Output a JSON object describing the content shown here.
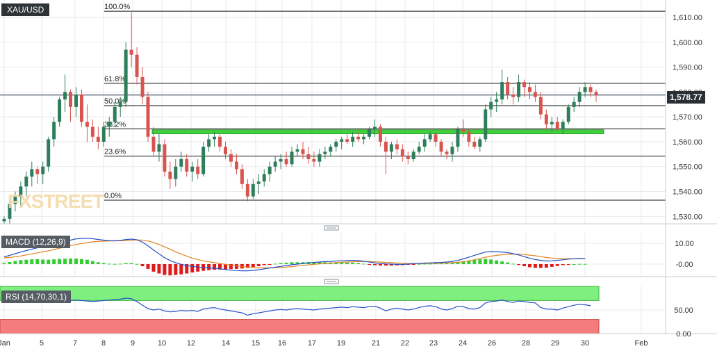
{
  "symbol": "XAU/USD",
  "current_price_label": "1,578.77",
  "watermark": "FXSTREET",
  "colors": {
    "up": "#2e7d5b",
    "down": "#d9534f",
    "grid": "#e8eaee",
    "fib_line": "#111111",
    "support_zone": "#42d13e",
    "macd_line": "#2450c8",
    "signal_line": "#e4831f",
    "hist_pos": "#33cc33",
    "hist_neg": "#e01919",
    "rsi_line": "#2450c8",
    "rsi_overbought": "#7fef7f",
    "rsi_oversold": "#f47c7c"
  },
  "chart_data": [
    {
      "type": "candlestick",
      "title": "XAU/USD",
      "ylim": [
        1527,
        1617
      ],
      "yticks": [
        1530,
        1540,
        1550,
        1560,
        1570,
        1580,
        1590,
        1600,
        1610
      ],
      "ytick_labels": [
        "1,530.00",
        "1,540.00",
        "1,550.00",
        "1,560.00",
        "1,570.00",
        "1,580.00",
        "1,590.00",
        "1,600.00",
        "1,610.00"
      ],
      "x_ticks": [
        "Jan",
        "5",
        "7",
        "8",
        "9",
        "10",
        "12",
        "14",
        "15",
        "16",
        "17",
        "19",
        "21",
        "22",
        "23",
        "24",
        "26",
        "28",
        "29",
        "30",
        "Feb"
      ],
      "last_price": 1578.77,
      "fibonacci": [
        {
          "label": "100.0%",
          "value": 1612.5
        },
        {
          "label": "61.8%",
          "value": 1583.5
        },
        {
          "label": "50.0%",
          "value": 1574.5
        },
        {
          "label": "38.2%",
          "value": 1565.2
        },
        {
          "label": "23.6%",
          "value": 1554.2
        },
        {
          "label": "0.0%",
          "value": 1536.5
        }
      ],
      "support_zone": [
        1563.2,
        1564.8
      ],
      "ohlc": [
        [
          1528,
          1530,
          1527,
          1529
        ],
        [
          1529,
          1536,
          1527,
          1535
        ],
        [
          1535,
          1540,
          1532,
          1538
        ],
        [
          1538,
          1544,
          1534,
          1542
        ],
        [
          1542,
          1548,
          1538,
          1546
        ],
        [
          1546,
          1552,
          1542,
          1549
        ],
        [
          1549,
          1550,
          1543,
          1547
        ],
        [
          1547,
          1552,
          1543,
          1550
        ],
        [
          1550,
          1562,
          1548,
          1561
        ],
        [
          1561,
          1570,
          1558,
          1568
        ],
        [
          1568,
          1578,
          1566,
          1577
        ],
        [
          1577,
          1587,
          1572,
          1580
        ],
        [
          1580,
          1581,
          1568,
          1574
        ],
        [
          1574,
          1582,
          1570,
          1579
        ],
        [
          1579,
          1581,
          1566,
          1568
        ],
        [
          1568,
          1575,
          1560,
          1566
        ],
        [
          1566,
          1569,
          1560,
          1562
        ],
        [
          1562,
          1566,
          1557,
          1560
        ],
        [
          1560,
          1568,
          1558,
          1566
        ],
        [
          1566,
          1570,
          1562,
          1568
        ],
        [
          1568,
          1576,
          1566,
          1574
        ],
        [
          1574,
          1578,
          1570,
          1576
        ],
        [
          1576,
          1600,
          1574,
          1597
        ],
        [
          1597,
          1612,
          1590,
          1595
        ],
        [
          1595,
          1598,
          1583,
          1586
        ],
        [
          1586,
          1590,
          1575,
          1578
        ],
        [
          1578,
          1580,
          1560,
          1562
        ],
        [
          1562,
          1566,
          1554,
          1556
        ],
        [
          1556,
          1563,
          1552,
          1559
        ],
        [
          1559,
          1561,
          1546,
          1548
        ],
        [
          1548,
          1552,
          1541,
          1545
        ],
        [
          1545,
          1553,
          1542,
          1550
        ],
        [
          1550,
          1556,
          1548,
          1553
        ],
        [
          1553,
          1555,
          1546,
          1548
        ],
        [
          1548,
          1552,
          1544,
          1550
        ],
        [
          1550,
          1553,
          1545,
          1547
        ],
        [
          1547,
          1560,
          1546,
          1558
        ],
        [
          1558,
          1563,
          1556,
          1561
        ],
        [
          1561,
          1564,
          1558,
          1562
        ],
        [
          1562,
          1563,
          1556,
          1558
        ],
        [
          1558,
          1560,
          1553,
          1555
        ],
        [
          1555,
          1557,
          1550,
          1552
        ],
        [
          1552,
          1555,
          1547,
          1549
        ],
        [
          1549,
          1551,
          1541,
          1543
        ],
        [
          1543,
          1545,
          1536,
          1538
        ],
        [
          1538,
          1545,
          1537,
          1543
        ],
        [
          1543,
          1547,
          1539,
          1544
        ],
        [
          1544,
          1549,
          1542,
          1547
        ],
        [
          1547,
          1552,
          1544,
          1550
        ],
        [
          1550,
          1554,
          1548,
          1552
        ],
        [
          1552,
          1555,
          1549,
          1553
        ],
        [
          1553,
          1556,
          1550,
          1551
        ],
        [
          1551,
          1558,
          1550,
          1556
        ],
        [
          1556,
          1559,
          1554,
          1557
        ],
        [
          1557,
          1560,
          1553,
          1555
        ],
        [
          1555,
          1558,
          1551,
          1553
        ],
        [
          1553,
          1556,
          1550,
          1552
        ],
        [
          1552,
          1557,
          1550,
          1555
        ],
        [
          1555,
          1558,
          1553,
          1556
        ],
        [
          1556,
          1559,
          1554,
          1558
        ],
        [
          1558,
          1561,
          1556,
          1560
        ],
        [
          1560,
          1562,
          1557,
          1561
        ],
        [
          1561,
          1563,
          1559,
          1560
        ],
        [
          1560,
          1564,
          1558,
          1562
        ],
        [
          1562,
          1564,
          1560,
          1561
        ],
        [
          1561,
          1563,
          1559,
          1562
        ],
        [
          1562,
          1566,
          1561,
          1565
        ],
        [
          1565,
          1569,
          1562,
          1566
        ],
        [
          1566,
          1567,
          1558,
          1560
        ],
        [
          1560,
          1562,
          1547,
          1556
        ],
        [
          1556,
          1560,
          1553,
          1559
        ],
        [
          1559,
          1561,
          1555,
          1557
        ],
        [
          1557,
          1559,
          1552,
          1554
        ],
        [
          1554,
          1556,
          1551,
          1553
        ],
        [
          1553,
          1557,
          1552,
          1556
        ],
        [
          1556,
          1560,
          1555,
          1558
        ],
        [
          1558,
          1563,
          1556,
          1561
        ],
        [
          1561,
          1564,
          1560,
          1563
        ],
        [
          1563,
          1564,
          1558,
          1560
        ],
        [
          1560,
          1561,
          1554,
          1556
        ],
        [
          1556,
          1557,
          1553,
          1555
        ],
        [
          1555,
          1560,
          1552,
          1558
        ],
        [
          1558,
          1566,
          1556,
          1565
        ],
        [
          1565,
          1569,
          1562,
          1564
        ],
        [
          1564,
          1565,
          1558,
          1560
        ],
        [
          1560,
          1562,
          1557,
          1558
        ],
        [
          1558,
          1562,
          1556,
          1561
        ],
        [
          1561,
          1575,
          1560,
          1573
        ],
        [
          1573,
          1578,
          1570,
          1576
        ],
        [
          1576,
          1580,
          1572,
          1577
        ],
        [
          1577,
          1589,
          1575,
          1584
        ],
        [
          1584,
          1586,
          1577,
          1579
        ],
        [
          1579,
          1582,
          1575,
          1578
        ],
        [
          1578,
          1587,
          1576,
          1584
        ],
        [
          1584,
          1585,
          1578,
          1582
        ],
        [
          1582,
          1584,
          1577,
          1580
        ],
        [
          1580,
          1583,
          1576,
          1578
        ],
        [
          1578,
          1580,
          1569,
          1571
        ],
        [
          1571,
          1573,
          1565,
          1567
        ],
        [
          1567,
          1570,
          1564,
          1568
        ],
        [
          1568,
          1570,
          1564,
          1565
        ],
        [
          1565,
          1569,
          1563,
          1568
        ],
        [
          1568,
          1575,
          1567,
          1574
        ],
        [
          1574,
          1578,
          1572,
          1576
        ],
        [
          1576,
          1582,
          1574,
          1580
        ],
        [
          1580,
          1584,
          1578,
          1582
        ],
        [
          1582,
          1583,
          1578,
          1580
        ],
        [
          1580,
          1581,
          1576,
          1578.77
        ]
      ]
    },
    {
      "type": "line",
      "title": "MACD (12,26,9)",
      "ylim": [
        -6,
        15
      ],
      "yticks": [
        10,
        0
      ],
      "ytick_labels": [
        "10.00",
        "-0.00"
      ],
      "series": [
        {
          "name": "MACD",
          "values": [
            3.5,
            4.2,
            5.0,
            5.8,
            6.5,
            7.2,
            7.8,
            8.1,
            8.5,
            9.3,
            10.1,
            10.8,
            11.5,
            12.1,
            12.3,
            12.4,
            12.2,
            11.8,
            11.5,
            11.3,
            11.2,
            11.4,
            11.8,
            12.0,
            11.7,
            10.5,
            8.8,
            6.8,
            4.9,
            3.1,
            1.7,
            0.7,
            -0.1,
            -0.7,
            -1.1,
            -1.4,
            -1.6,
            -1.8,
            -2.0,
            -2.3,
            -2.6,
            -2.9,
            -3.1,
            -3.2,
            -3.2,
            -3.0,
            -2.7,
            -2.3,
            -1.9,
            -1.5,
            -1.1,
            -0.7,
            -0.3,
            0,
            0.3,
            0.6,
            0.8,
            1.0,
            1.2,
            1.3,
            1.5,
            1.6,
            1.7,
            1.8,
            1.7,
            1.4,
            1.0,
            0.6,
            0.3,
            0.1,
            0,
            -0.1,
            -0.1,
            0,
            0.2,
            0.4,
            0.5,
            0.6,
            0.7,
            0.8,
            1.0,
            1.3,
            1.8,
            2.5,
            3.3,
            4.2,
            5.0,
            5.8,
            6.0,
            6.0,
            5.8,
            5.5,
            5.0,
            4.4,
            3.6,
            2.8,
            2.2,
            1.8,
            1.5,
            1.6,
            1.8,
            2.1,
            2.4,
            2.6,
            2.7,
            2.7
          ]
        },
        {
          "name": "Signal",
          "values": [
            3.0,
            3.2,
            3.5,
            3.9,
            4.4,
            4.9,
            5.4,
            5.9,
            6.4,
            7.0,
            7.6,
            8.2,
            8.8,
            9.4,
            9.9,
            10.3,
            10.7,
            10.9,
            11.0,
            11.1,
            11.1,
            11.2,
            11.3,
            11.5,
            11.6,
            11.5,
            11.1,
            10.4,
            9.4,
            8.3,
            7.1,
            5.9,
            4.8,
            3.8,
            2.9,
            2.2,
            1.6,
            1.1,
            0.7,
            0.3,
            -0.1,
            -0.5,
            -0.8,
            -1.1,
            -1.4,
            -1.6,
            -1.7,
            -1.8,
            -1.8,
            -1.7,
            -1.6,
            -1.4,
            -1.2,
            -0.9,
            -0.6,
            -0.4,
            -0.1,
            0.1,
            0.3,
            0.5,
            0.7,
            0.9,
            1.0,
            1.1,
            1.2,
            1.2,
            1.2,
            1.1,
            1.0,
            0.8,
            0.7,
            0.5,
            0.4,
            0.3,
            0.3,
            0.3,
            0.3,
            0.4,
            0.4,
            0.5,
            0.6,
            0.7,
            0.9,
            1.2,
            1.6,
            2.1,
            2.7,
            3.3,
            3.8,
            4.2,
            4.5,
            4.7,
            4.8,
            4.8,
            4.6,
            4.3,
            4.0,
            3.6,
            3.2,
            2.9,
            2.7,
            2.6,
            2.6,
            2.6,
            2.6,
            2.6
          ]
        }
      ]
    },
    {
      "type": "line",
      "title": "RSI (14,70,30,1)",
      "ylim": [
        0,
        100
      ],
      "yticks": [
        50,
        0
      ],
      "ytick_labels": [
        "50.00",
        "0.00"
      ],
      "overbought": 70,
      "oversold": 30,
      "series": [
        {
          "name": "RSI",
          "values": [
            72,
            74,
            75,
            76,
            77,
            75,
            73,
            71,
            72,
            73,
            74,
            72,
            70,
            71,
            70,
            69,
            68,
            69,
            70,
            71,
            72,
            73,
            75,
            74,
            68,
            60,
            53,
            50,
            52,
            48,
            46,
            47,
            49,
            48,
            49,
            47,
            52,
            54,
            55,
            52,
            50,
            48,
            46,
            44,
            39,
            42,
            44,
            46,
            48,
            50,
            51,
            50,
            52,
            53,
            52,
            51,
            50,
            52,
            53,
            54,
            55,
            56,
            55,
            57,
            56,
            55,
            57,
            58,
            54,
            48,
            52,
            54,
            52,
            50,
            52,
            55,
            58,
            59,
            57,
            52,
            50,
            53,
            58,
            57,
            53,
            52,
            55,
            65,
            68,
            69,
            71,
            68,
            66,
            69,
            68,
            66,
            65,
            55,
            52,
            52,
            50,
            54,
            57,
            60,
            62,
            61,
            59
          ]
        }
      ]
    }
  ]
}
